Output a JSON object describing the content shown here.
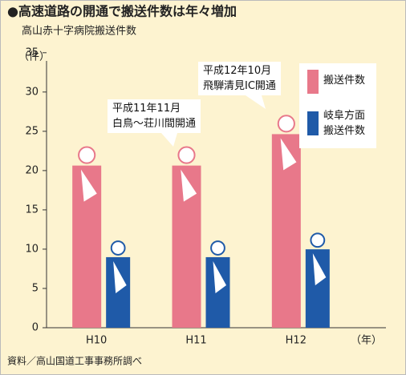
{
  "chart_data": {
    "type": "pictogram",
    "title": "●高速道路の開通で搬送件数は年々増加",
    "subtitle": "高山赤十字病院搬送件数",
    "y_unit": "（件）",
    "x_unit": "（年）",
    "source": "資料／高山国道工事事務所調べ",
    "categories": [
      "H10",
      "H11",
      "H12"
    ],
    "series": [
      {
        "name": "搬送件数",
        "color": "#e8788a",
        "values": [
          23,
          23,
          27
        ]
      },
      {
        "name": "岐阜方面\n搬送件数",
        "color": "#1f5aa8",
        "values": [
          11,
          11,
          12
        ]
      }
    ],
    "annotations": [
      "平成11年11月\n白鳥～荘川間開通",
      "平成12年10月\n飛騨清見IC開通"
    ],
    "ylim": [
      0,
      36
    ],
    "yticks": [
      0,
      5,
      10,
      15,
      20,
      25,
      30,
      35
    ]
  }
}
